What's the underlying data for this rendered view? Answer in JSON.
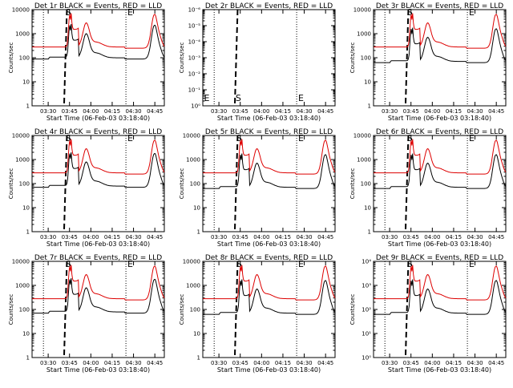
{
  "defaults": {
    "ylabel": "Counts/sec",
    "xlabel": "Start Time (06-Feb-03 03:18:40)",
    "x_tick_labels": [
      "03:30",
      "03:45",
      "04:00",
      "04:15",
      "04:30",
      "04:45"
    ],
    "y_tick_labels": [
      "1",
      "10",
      "100",
      "1000",
      "10000"
    ],
    "event_colors": {
      "events": "#000000",
      "lld": "#dd0000"
    },
    "s_label": "S",
    "e_label": "E"
  },
  "chart_data": [
    {
      "type": "line",
      "title": "Det 1r BLACK = Events, RED = LLD",
      "events_scale": 0.55,
      "s_label_show": true,
      "e_label_show": true
    },
    {
      "type": "line",
      "title": "Det 2r BLACK = Events, RED = LLD",
      "empty": true,
      "y_tick_labels": [
        "10⁰",
        "10⁻¹",
        "10⁻²",
        "10⁻³",
        "10⁻⁴",
        "10⁻⁵",
        "10⁻⁶"
      ]
    },
    {
      "type": "line",
      "title": "Det 3r BLACK = Events, RED = LLD",
      "events_scale": 0.4
    },
    {
      "type": "line",
      "title": "Det 4r BLACK = Events, RED = LLD",
      "events_scale": 0.45
    },
    {
      "type": "line",
      "title": "Det 5r BLACK = Events, RED = LLD",
      "events_scale": 0.4
    },
    {
      "type": "line",
      "title": "Det 6r BLACK = Events, RED = LLD",
      "events_scale": 0.4
    },
    {
      "type": "line",
      "title": "Det 7r BLACK = Events, RED = LLD",
      "events_scale": 0.45
    },
    {
      "type": "line",
      "title": "Det 8r BLACK = Events, RED = LLD",
      "events_scale": 0.4
    },
    {
      "type": "line",
      "title": "Det 9r BLACK = Events, RED = LLD",
      "events_scale": 0.4,
      "y_tick_labels": [
        "10⁰",
        "10¹",
        "10²",
        "10³",
        "10⁴"
      ]
    }
  ]
}
